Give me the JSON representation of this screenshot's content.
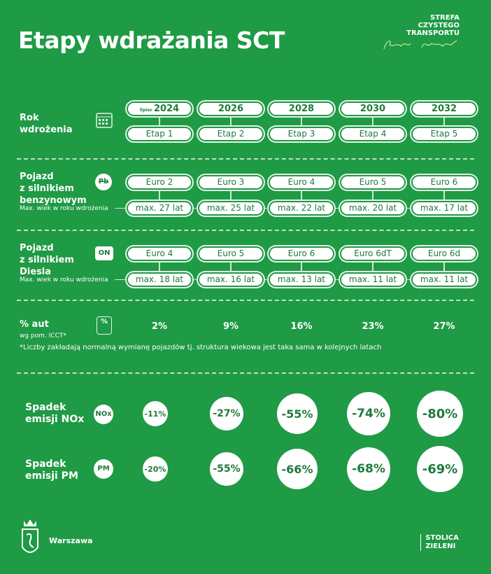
{
  "title": "Etapy wdrażania SCT",
  "brand": {
    "line1": "STREFA",
    "line2": "CZYSTEGO",
    "line3": "TRANSPORTU"
  },
  "rows": {
    "year": {
      "label1": "Rok",
      "label2": "wdrożenia",
      "prefix": "lipiec",
      "years": [
        "2024",
        "2026",
        "2028",
        "2030",
        "2032"
      ],
      "stages": [
        "Etap 1",
        "Etap 2",
        "Etap 3",
        "Etap 4",
        "Etap 5"
      ]
    },
    "petrol": {
      "label1": "Pojazd",
      "label2": "z silnikiem",
      "label3": "benzynowym",
      "sub": "Max. wiek w roku wdrożenia",
      "icon": "Pb",
      "norms": [
        "Euro 2",
        "Euro 3",
        "Euro 4",
        "Euro 5",
        "Euro 6"
      ],
      "ages": [
        "max. 27 lat",
        "max. 25 lat",
        "max. 22 lat",
        "max. 20 lat",
        "max. 17 lat"
      ]
    },
    "diesel": {
      "label1": "Pojazd",
      "label2": "z silnikiem",
      "label3": "Diesla",
      "sub": "Max. wiek w roku wdrożenia",
      "icon": "ON",
      "norms": [
        "Euro 4",
        "Euro 5",
        "Euro 6",
        "Euro 6dT",
        "Euro 6d"
      ],
      "ages": [
        "max. 18 lat",
        "max. 16 lat",
        "max. 13 lat",
        "max. 11 lat",
        "max. 11 lat"
      ]
    },
    "share": {
      "label1": "% aut",
      "label2": "wg pom. ICCT*",
      "icon": "%",
      "values": [
        "2%",
        "9%",
        "16%",
        "23%",
        "27%"
      ]
    }
  },
  "note": "*Liczby zakładają normalną wymianę pojazdów tj. struktura wiekowa jest taka sama w kolejnych latach",
  "nox": {
    "label1": "Spadek",
    "label2": "emisji NOx",
    "icon": "NOx",
    "values": [
      "-11%",
      "-27%",
      "-55%",
      "-74%",
      "-80%"
    ]
  },
  "pm": {
    "label1": "Spadek",
    "label2": "emisji PM",
    "icon": "PM",
    "values": [
      "-20%",
      "-55%",
      "-66%",
      "-68%",
      "-69%"
    ]
  },
  "footer": {
    "city": "Warszawa",
    "stolica1": "STOLICA",
    "stolica2": "ZIELENI"
  }
}
